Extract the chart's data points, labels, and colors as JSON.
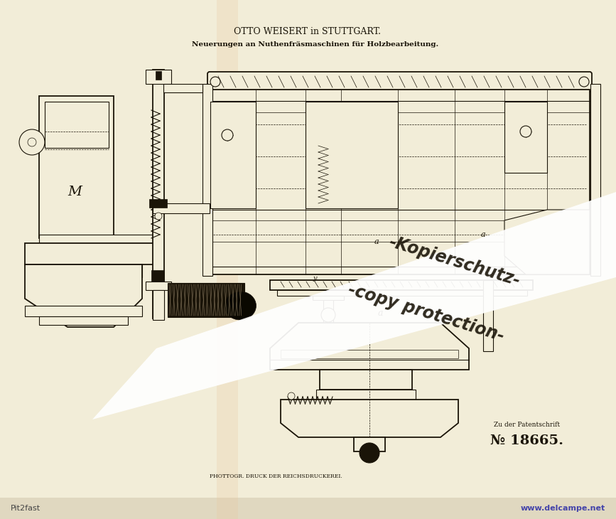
{
  "bg_color": "#ede8d8",
  "paper_color": "#f2edd8",
  "title_line1": "OTTO WEISERT in STUTTGART.",
  "title_line2": "Neuerungen an Nuthenfräsmaschinen für Holzbearbeitung.",
  "patent_label": "Zu der Patentschrift",
  "patent_number": "№ 18665.",
  "bottom_text": "PHOTTOGR. DRUCK DER REICHSDRUCKEREI.",
  "watermark_line1": "-Kopierschutz-",
  "watermark_line2": "-copy protection-",
  "website_left": "Pit2fast",
  "website_right": "www.delcampe.net",
  "dark_color": "#1a1408",
  "medium_color": "#3a2e18",
  "band_color": "#ffffff",
  "wm_color": "#1a1408",
  "wm_red": "#cc0000"
}
